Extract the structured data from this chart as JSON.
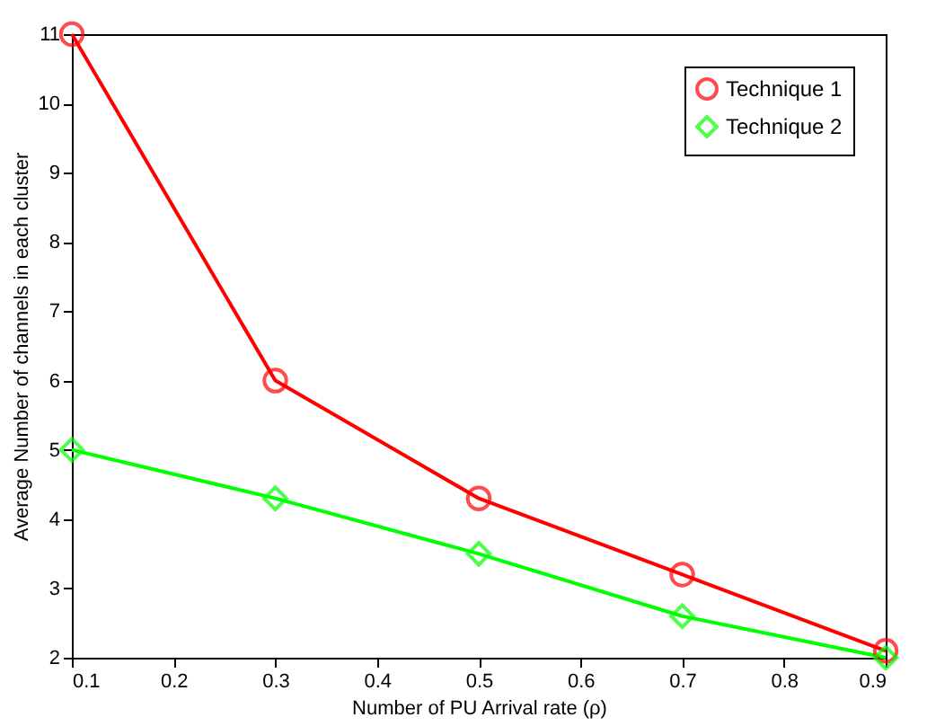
{
  "chart_data": {
    "type": "line",
    "xlabel": "Number of PU Arrival rate (ρ)",
    "ylabel": "Average Number of channels in each cluster",
    "x": [
      0.1,
      0.3,
      0.5,
      0.7,
      0.9
    ],
    "series": [
      {
        "name": "Technique 1",
        "color": "#ff0000",
        "marker": "circle",
        "values": [
          11,
          6,
          4.3,
          3.2,
          2.1
        ]
      },
      {
        "name": "Technique 2",
        "color": "#00ff00",
        "marker": "diamond",
        "values": [
          5,
          4.3,
          3.5,
          2.6,
          2.0
        ]
      }
    ],
    "xlim": [
      0.1,
      0.9
    ],
    "xticks": [
      0.1,
      0.2,
      0.3,
      0.4,
      0.5,
      0.6,
      0.7,
      0.8,
      0.9
    ],
    "ylim": [
      2,
      11
    ],
    "yticks": [
      2,
      3,
      4,
      5,
      6,
      7,
      8,
      9,
      10,
      11
    ],
    "grid": false,
    "legend": "top right",
    "line_style": "solid"
  }
}
